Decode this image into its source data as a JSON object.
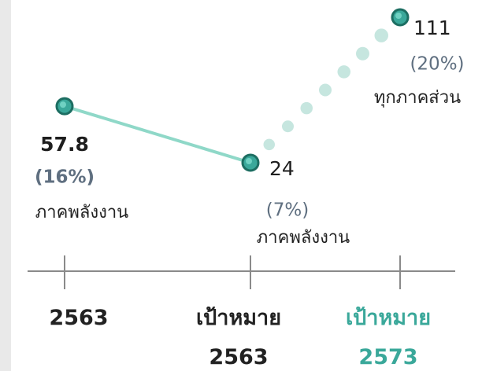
{
  "chart_data": {
    "type": "line",
    "categories": [
      "2563",
      "เป้าหมาย 2563",
      "เป้าหมาย 2573"
    ],
    "category_colors": [
      "#222222",
      "#222222",
      "#3aa89a"
    ],
    "values": [
      57.8,
      24,
      111
    ],
    "percent_labels": [
      "(16%)",
      "(7%)",
      "(20%)"
    ],
    "sector_labels": [
      "ภาคพลังงาน",
      "ภาคพลังงาน",
      "ทุกภาคส่วน"
    ],
    "color": "#3aa89a",
    "line_color": "#8fd8c8",
    "dot_color": "#c6e6df"
  }
}
